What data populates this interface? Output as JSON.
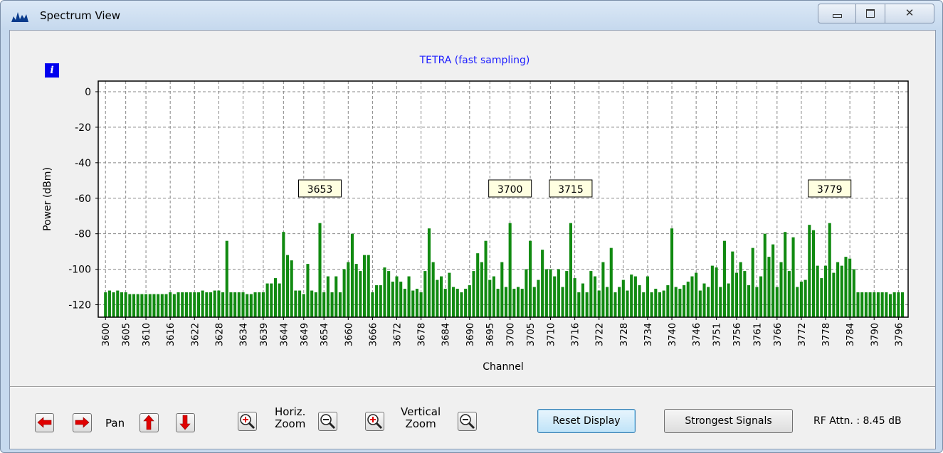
{
  "window": {
    "title": "Spectrum View"
  },
  "info_icon": "i",
  "chart_data": {
    "type": "bar",
    "title": "TETRA (fast sampling)",
    "x_label": "Channel",
    "y_label": "Power (dBm)",
    "x": [
      3600,
      3601,
      3602,
      3603,
      3604,
      3605,
      3606,
      3607,
      3608,
      3609,
      3610,
      3611,
      3612,
      3613,
      3614,
      3615,
      3616,
      3617,
      3618,
      3619,
      3620,
      3621,
      3622,
      3623,
      3624,
      3625,
      3626,
      3627,
      3628,
      3629,
      3630,
      3631,
      3632,
      3633,
      3634,
      3635,
      3636,
      3637,
      3638,
      3639,
      3640,
      3641,
      3642,
      3643,
      3644,
      3645,
      3646,
      3647,
      3648,
      3649,
      3650,
      3651,
      3652,
      3653,
      3654,
      3655,
      3656,
      3657,
      3658,
      3659,
      3660,
      3661,
      3662,
      3663,
      3664,
      3665,
      3666,
      3667,
      3668,
      3669,
      3670,
      3671,
      3672,
      3673,
      3674,
      3675,
      3676,
      3677,
      3678,
      3679,
      3680,
      3681,
      3682,
      3683,
      3684,
      3685,
      3686,
      3687,
      3688,
      3689,
      3690,
      3691,
      3692,
      3693,
      3694,
      3695,
      3696,
      3697,
      3698,
      3699,
      3700,
      3701,
      3702,
      3703,
      3704,
      3705,
      3706,
      3707,
      3708,
      3709,
      3710,
      3711,
      3712,
      3713,
      3714,
      3715,
      3716,
      3717,
      3718,
      3719,
      3720,
      3721,
      3722,
      3723,
      3724,
      3725,
      3726,
      3727,
      3728,
      3729,
      3730,
      3731,
      3732,
      3733,
      3734,
      3735,
      3736,
      3737,
      3738,
      3739,
      3740,
      3741,
      3742,
      3743,
      3744,
      3745,
      3746,
      3747,
      3748,
      3749,
      3750,
      3751,
      3752,
      3753,
      3754,
      3755,
      3756,
      3757,
      3758,
      3759,
      3760,
      3761,
      3762,
      3763,
      3764,
      3765,
      3766,
      3767,
      3768,
      3769,
      3770,
      3771,
      3772,
      3773,
      3774,
      3775,
      3776,
      3777,
      3778,
      3779,
      3780,
      3781,
      3782,
      3783,
      3784,
      3785,
      3786,
      3787,
      3788,
      3789,
      3790,
      3791,
      3792,
      3793,
      3794,
      3795,
      3796,
      3797
    ],
    "values": [
      -113,
      -112,
      -113,
      -112,
      -113,
      -113,
      -114,
      -114,
      -114,
      -114,
      -114,
      -114,
      -114,
      -114,
      -114,
      -114,
      -113,
      -114,
      -113,
      -113,
      -113,
      -113,
      -113,
      -113,
      -112,
      -113,
      -113,
      -112,
      -112,
      -113,
      -84,
      -113,
      -113,
      -113,
      -113,
      -114,
      -114,
      -113,
      -113,
      -113,
      -108,
      -108,
      -105,
      -108,
      -79,
      -92,
      -95,
      -112,
      -112,
      -114,
      -97,
      -112,
      -113,
      -74,
      -113,
      -104,
      -113,
      -104,
      -113,
      -100,
      -96,
      -80,
      -97,
      -101,
      -92,
      -92,
      -113,
      -109,
      -109,
      -99,
      -101,
      -107,
      -104,
      -107,
      -111,
      -104,
      -112,
      -111,
      -113,
      -101,
      -77,
      -96,
      -106,
      -104,
      -111,
      -102,
      -110,
      -111,
      -113,
      -111,
      -109,
      -101,
      -91,
      -96,
      -84,
      -106,
      -104,
      -111,
      -96,
      -110,
      -74,
      -111,
      -110,
      -111,
      -100,
      -84,
      -110,
      -106,
      -89,
      -100,
      -100,
      -104,
      -100,
      -110,
      -101,
      -74,
      -105,
      -113,
      -108,
      -113,
      -101,
      -104,
      -112,
      -96,
      -110,
      -88,
      -113,
      -110,
      -106,
      -112,
      -103,
      -104,
      -109,
      -113,
      -104,
      -113,
      -111,
      -113,
      -112,
      -109,
      -77,
      -110,
      -111,
      -109,
      -107,
      -104,
      -102,
      -112,
      -108,
      -110,
      -98,
      -99,
      -110,
      -84,
      -108,
      -90,
      -102,
      -96,
      -101,
      -109,
      -88,
      -110,
      -104,
      -80,
      -93,
      -86,
      -110,
      -96,
      -79,
      -101,
      -82,
      -110,
      -107,
      -106,
      -75,
      -78,
      -98,
      -105,
      -98,
      -74,
      -102,
      -96,
      -98,
      -93,
      -94,
      -100,
      -113,
      -113,
      -113,
      -113,
      -113,
      -113,
      -113,
      -113,
      -114,
      -113,
      -113,
      -113
    ],
    "color": "#118a11",
    "xlim": [
      3598.2,
      3798.4
    ],
    "xticks": [
      3600,
      3605,
      3610,
      3616,
      3622,
      3628,
      3634,
      3639,
      3644,
      3649,
      3654,
      3660,
      3666,
      3672,
      3678,
      3684,
      3690,
      3695,
      3700,
      3705,
      3710,
      3716,
      3722,
      3728,
      3734,
      3740,
      3746,
      3751,
      3756,
      3761,
      3766,
      3772,
      3778,
      3784,
      3790,
      3796
    ],
    "ylim": [
      -127,
      6
    ],
    "yticks": [
      0,
      -20,
      -40,
      -60,
      -80,
      -100,
      -120
    ],
    "grid": true,
    "annotations": [
      3653,
      3700,
      3715,
      3779
    ]
  },
  "controls": {
    "pan": "Pan",
    "horiz_zoom": [
      "Horiz.",
      "Zoom"
    ],
    "vertical_zoom": [
      "Vertical",
      "Zoom"
    ],
    "reset": "Reset Display",
    "strongest": "Strongest Signals",
    "status": "RF Attn. : 8.45 dB"
  }
}
